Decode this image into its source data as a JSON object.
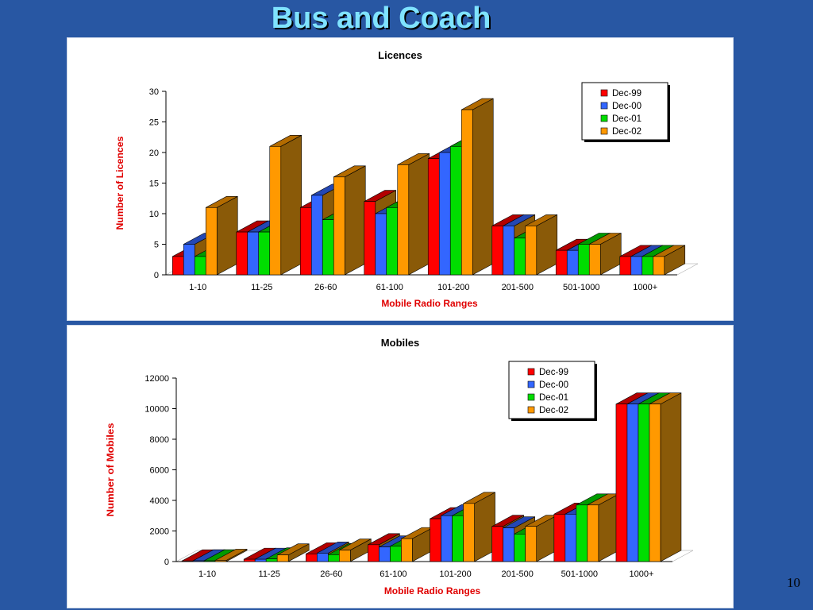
{
  "slide": {
    "title": "Bus and Coach",
    "page_number": "10"
  },
  "colors": {
    "background": "#2857a3",
    "title": "#7fe3ff",
    "axis_title": "#e00000"
  },
  "chart_data": [
    {
      "type": "bar",
      "title": "Licences",
      "xlabel": "Mobile Radio Ranges",
      "ylabel": "Number of Licences",
      "categories": [
        "1-10",
        "11-25",
        "26-60",
        "61-100",
        "101-200",
        "201-500",
        "501-1000",
        "1000+"
      ],
      "ylim": [
        0,
        30
      ],
      "yticks": [
        0,
        5,
        10,
        15,
        20,
        25,
        30
      ],
      "legend_position": "top-right",
      "series": [
        {
          "name": "Dec-99",
          "color": "#ff0000",
          "values": [
            3,
            7,
            11,
            12,
            19,
            8,
            4,
            3
          ]
        },
        {
          "name": "Dec-00",
          "color": "#3366ff",
          "values": [
            5,
            7,
            13,
            10,
            20,
            8,
            4,
            3
          ]
        },
        {
          "name": "Dec-01",
          "color": "#00dd00",
          "values": [
            3,
            7,
            9,
            11,
            21,
            6,
            5,
            3
          ]
        },
        {
          "name": "Dec-02",
          "color": "#ff9900",
          "values": [
            11,
            21,
            16,
            18,
            27,
            8,
            5,
            3
          ]
        }
      ]
    },
    {
      "type": "bar",
      "title": "Mobiles",
      "xlabel": "Mobile Radio Ranges",
      "ylabel": "Number of Mobiles",
      "categories": [
        "1-10",
        "11-25",
        "26-60",
        "61-100",
        "101-200",
        "201-500",
        "501-1000",
        "1000+"
      ],
      "ylim": [
        0,
        12000
      ],
      "yticks": [
        0,
        2000,
        4000,
        6000,
        8000,
        10000,
        12000
      ],
      "legend_position": "top-right",
      "series": [
        {
          "name": "Dec-99",
          "color": "#ff0000",
          "values": [
            40,
            150,
            500,
            1100,
            2800,
            2300,
            3100,
            10300
          ]
        },
        {
          "name": "Dec-00",
          "color": "#3366ff",
          "values": [
            50,
            150,
            550,
            950,
            3000,
            2200,
            3100,
            10300
          ]
        },
        {
          "name": "Dec-01",
          "color": "#00dd00",
          "values": [
            50,
            170,
            450,
            1000,
            3000,
            1800,
            3700,
            10300
          ]
        },
        {
          "name": "Dec-02",
          "color": "#ff9900",
          "values": [
            80,
            430,
            750,
            1500,
            3800,
            2300,
            3700,
            10300
          ]
        }
      ]
    }
  ]
}
